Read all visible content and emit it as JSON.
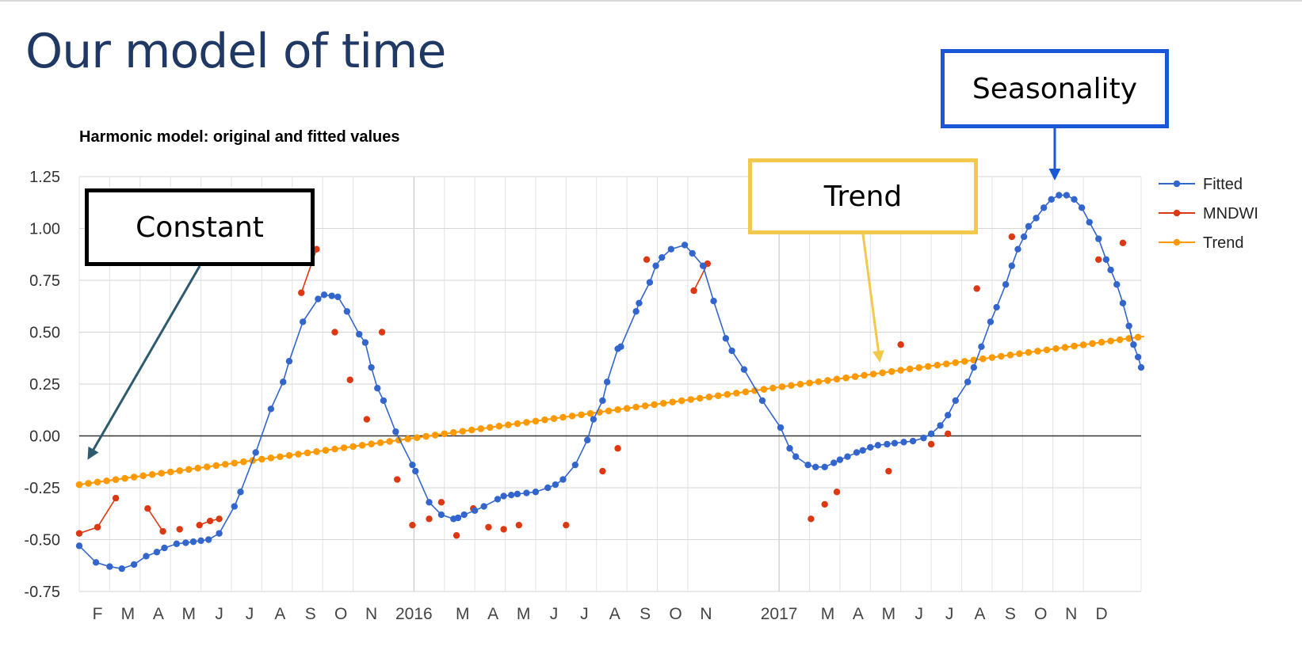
{
  "slide": {
    "title": "Our model of time"
  },
  "callouts": {
    "constant": "Constant",
    "trend": "Trend",
    "seasonality": "Seasonality"
  },
  "colors": {
    "fitted": "#3366cc",
    "mndwi": "#dc3912",
    "trend": "#ff9900",
    "constant_border": "#000000",
    "trend_border": "#f2c94c",
    "seasonality_border": "#1858d6",
    "constant_arrow": "#2e5a6e",
    "title": "#1f3864"
  },
  "chart_data": {
    "type": "line",
    "title": "Harmonic model: original and fitted values",
    "xlabel": "",
    "ylabel": "",
    "x_unit": "month index (0 = Jan 2015, 36 = Jan 2018)",
    "xlim": [
      1,
      35.9
    ],
    "ylim": [
      -0.75,
      1.25
    ],
    "yticks": [
      "1.25",
      "1.00",
      "0.75",
      "0.50",
      "0.25",
      "0.00",
      "-0.25",
      "-0.50",
      "-0.75"
    ],
    "ytick_values": [
      1.25,
      1.0,
      0.75,
      0.5,
      0.25,
      0.0,
      -0.25,
      -0.5,
      -0.75
    ],
    "xticks": [
      {
        "x": 1.6,
        "label": "F"
      },
      {
        "x": 2.6,
        "label": "M"
      },
      {
        "x": 3.6,
        "label": "A"
      },
      {
        "x": 4.6,
        "label": "M"
      },
      {
        "x": 5.6,
        "label": "J"
      },
      {
        "x": 6.6,
        "label": "J"
      },
      {
        "x": 7.6,
        "label": "A"
      },
      {
        "x": 8.6,
        "label": "S"
      },
      {
        "x": 9.6,
        "label": "O"
      },
      {
        "x": 10.6,
        "label": "N"
      },
      {
        "x": 12.0,
        "label": "2016"
      },
      {
        "x": 13.6,
        "label": "M"
      },
      {
        "x": 14.6,
        "label": "A"
      },
      {
        "x": 15.6,
        "label": "M"
      },
      {
        "x": 16.6,
        "label": "J"
      },
      {
        "x": 17.6,
        "label": "J"
      },
      {
        "x": 18.6,
        "label": "A"
      },
      {
        "x": 19.6,
        "label": "S"
      },
      {
        "x": 20.6,
        "label": "O"
      },
      {
        "x": 21.6,
        "label": "N"
      },
      {
        "x": 24.0,
        "label": "2017"
      },
      {
        "x": 25.6,
        "label": "M"
      },
      {
        "x": 26.6,
        "label": "A"
      },
      {
        "x": 27.6,
        "label": "M"
      },
      {
        "x": 28.6,
        "label": "J"
      },
      {
        "x": 29.6,
        "label": "J"
      },
      {
        "x": 30.6,
        "label": "A"
      },
      {
        "x": 31.6,
        "label": "S"
      },
      {
        "x": 32.6,
        "label": "O"
      },
      {
        "x": 33.6,
        "label": "N"
      },
      {
        "x": 34.6,
        "label": "D"
      }
    ],
    "grid": true,
    "legend_position": "right",
    "series": [
      {
        "name": "Fitted",
        "markers": true,
        "points": [
          [
            1.0,
            -0.53
          ],
          [
            1.55,
            -0.61
          ],
          [
            2.0,
            -0.63
          ],
          [
            2.4,
            -0.64
          ],
          [
            2.8,
            -0.62
          ],
          [
            3.2,
            -0.58
          ],
          [
            3.55,
            -0.56
          ],
          [
            3.8,
            -0.54
          ],
          [
            4.2,
            -0.52
          ],
          [
            4.5,
            -0.515
          ],
          [
            4.75,
            -0.51
          ],
          [
            5.0,
            -0.505
          ],
          [
            5.25,
            -0.5
          ],
          [
            5.6,
            -0.47
          ],
          [
            6.1,
            -0.34
          ],
          [
            6.3,
            -0.27
          ],
          [
            6.8,
            -0.08
          ],
          [
            7.3,
            0.13
          ],
          [
            7.7,
            0.26
          ],
          [
            7.9,
            0.36
          ],
          [
            8.35,
            0.55
          ],
          [
            8.85,
            0.66
          ],
          [
            9.05,
            0.68
          ],
          [
            9.3,
            0.675
          ],
          [
            9.5,
            0.67
          ],
          [
            9.8,
            0.6
          ],
          [
            10.2,
            0.49
          ],
          [
            10.4,
            0.45
          ],
          [
            10.6,
            0.33
          ],
          [
            10.8,
            0.23
          ],
          [
            11.0,
            0.17
          ],
          [
            11.4,
            0.02
          ],
          [
            11.95,
            -0.14
          ],
          [
            12.05,
            -0.17
          ],
          [
            12.5,
            -0.32
          ],
          [
            12.9,
            -0.38
          ],
          [
            13.3,
            -0.4
          ],
          [
            13.45,
            -0.395
          ],
          [
            13.65,
            -0.38
          ],
          [
            14.0,
            -0.36
          ],
          [
            14.3,
            -0.34
          ],
          [
            14.75,
            -0.305
          ],
          [
            14.95,
            -0.29
          ],
          [
            15.2,
            -0.285
          ],
          [
            15.4,
            -0.28
          ],
          [
            15.7,
            -0.275
          ],
          [
            16.0,
            -0.27
          ],
          [
            16.4,
            -0.25
          ],
          [
            16.65,
            -0.235
          ],
          [
            16.9,
            -0.21
          ],
          [
            17.3,
            -0.14
          ],
          [
            17.7,
            -0.02
          ],
          [
            17.9,
            0.08
          ],
          [
            18.2,
            0.17
          ],
          [
            18.35,
            0.26
          ],
          [
            18.7,
            0.42
          ],
          [
            18.8,
            0.43
          ],
          [
            19.3,
            0.6
          ],
          [
            19.4,
            0.64
          ],
          [
            19.75,
            0.74
          ],
          [
            19.95,
            0.82
          ],
          [
            20.15,
            0.86
          ],
          [
            20.45,
            0.9
          ],
          [
            20.9,
            0.92
          ],
          [
            21.15,
            0.88
          ],
          [
            21.5,
            0.82
          ],
          [
            21.85,
            0.65
          ],
          [
            22.25,
            0.47
          ],
          [
            22.45,
            0.41
          ],
          [
            22.85,
            0.32
          ],
          [
            23.45,
            0.17
          ],
          [
            24.05,
            0.04
          ],
          [
            24.35,
            -0.06
          ],
          [
            24.55,
            -0.1
          ],
          [
            24.95,
            -0.14
          ],
          [
            25.2,
            -0.15
          ],
          [
            25.5,
            -0.15
          ],
          [
            25.8,
            -0.13
          ],
          [
            26.0,
            -0.115
          ],
          [
            26.25,
            -0.1
          ],
          [
            26.55,
            -0.08
          ],
          [
            26.75,
            -0.07
          ],
          [
            27.0,
            -0.055
          ],
          [
            27.25,
            -0.045
          ],
          [
            27.55,
            -0.04
          ],
          [
            27.8,
            -0.035
          ],
          [
            28.1,
            -0.03
          ],
          [
            28.4,
            -0.025
          ],
          [
            28.75,
            -0.01
          ],
          [
            29.0,
            0.01
          ],
          [
            29.3,
            0.05
          ],
          [
            29.55,
            0.1
          ],
          [
            29.8,
            0.17
          ],
          [
            30.2,
            0.26
          ],
          [
            30.4,
            0.33
          ],
          [
            30.65,
            0.43
          ],
          [
            30.95,
            0.55
          ],
          [
            31.15,
            0.62
          ],
          [
            31.45,
            0.73
          ],
          [
            31.65,
            0.82
          ],
          [
            31.85,
            0.9
          ],
          [
            32.05,
            0.96
          ],
          [
            32.2,
            1.01
          ],
          [
            32.45,
            1.05
          ],
          [
            32.7,
            1.1
          ],
          [
            32.95,
            1.14
          ],
          [
            33.2,
            1.16
          ],
          [
            33.45,
            1.16
          ],
          [
            33.7,
            1.14
          ],
          [
            33.95,
            1.1
          ],
          [
            34.2,
            1.03
          ],
          [
            34.5,
            0.95
          ],
          [
            34.75,
            0.85
          ],
          [
            34.9,
            0.8
          ],
          [
            35.1,
            0.73
          ],
          [
            35.3,
            0.64
          ],
          [
            35.5,
            0.53
          ],
          [
            35.65,
            0.44
          ],
          [
            35.8,
            0.38
          ],
          [
            35.9,
            0.33
          ]
        ]
      },
      {
        "name": "MNDWI",
        "markers": true,
        "segments": [
          [
            [
              1.0,
              -0.47
            ],
            [
              1.6,
              -0.44
            ],
            [
              2.2,
              -0.3
            ]
          ],
          [
            [
              3.25,
              -0.35
            ],
            [
              3.75,
              -0.46
            ]
          ],
          [
            [
              4.3,
              -0.45
            ]
          ],
          [
            [
              4.95,
              -0.43
            ],
            [
              5.3,
              -0.41
            ],
            [
              5.6,
              -0.4
            ]
          ],
          [
            [
              8.3,
              0.69
            ],
            [
              8.8,
              0.9
            ]
          ],
          [
            [
              9.4,
              0.5
            ]
          ],
          [
            [
              9.9,
              0.27
            ]
          ],
          [
            [
              10.45,
              0.08
            ]
          ],
          [
            [
              10.95,
              0.5
            ]
          ],
          [
            [
              11.45,
              -0.21
            ]
          ],
          [
            [
              11.95,
              -0.43
            ]
          ],
          [
            [
              12.5,
              -0.4
            ]
          ],
          [
            [
              12.9,
              -0.32
            ]
          ],
          [
            [
              13.4,
              -0.48
            ]
          ],
          [
            [
              13.95,
              -0.35
            ]
          ],
          [
            [
              14.45,
              -0.44
            ]
          ],
          [
            [
              14.95,
              -0.45
            ]
          ],
          [
            [
              15.45,
              -0.43
            ]
          ],
          [
            [
              17.0,
              -0.43
            ]
          ],
          [
            [
              18.2,
              -0.17
            ]
          ],
          [
            [
              18.7,
              -0.06
            ]
          ],
          [
            [
              19.65,
              0.85
            ]
          ],
          [
            [
              21.2,
              0.7
            ],
            [
              21.65,
              0.83
            ]
          ],
          [
            [
              25.05,
              -0.4
            ]
          ],
          [
            [
              25.5,
              -0.33
            ]
          ],
          [
            [
              25.9,
              -0.27
            ]
          ],
          [
            [
              27.6,
              -0.17
            ]
          ],
          [
            [
              28.0,
              0.44
            ]
          ],
          [
            [
              29.0,
              -0.04
            ]
          ],
          [
            [
              29.55,
              0.01
            ]
          ],
          [
            [
              30.5,
              0.71
            ]
          ],
          [
            [
              31.65,
              0.96
            ]
          ],
          [
            [
              34.5,
              0.85
            ]
          ],
          [
            [
              35.3,
              0.93
            ]
          ]
        ]
      },
      {
        "name": "Trend",
        "markers": true,
        "line": {
          "x_start": 1.0,
          "x_end": 36.0,
          "y_start": -0.235,
          "y_end": 0.48,
          "marker_step": 0.3
        }
      }
    ]
  }
}
